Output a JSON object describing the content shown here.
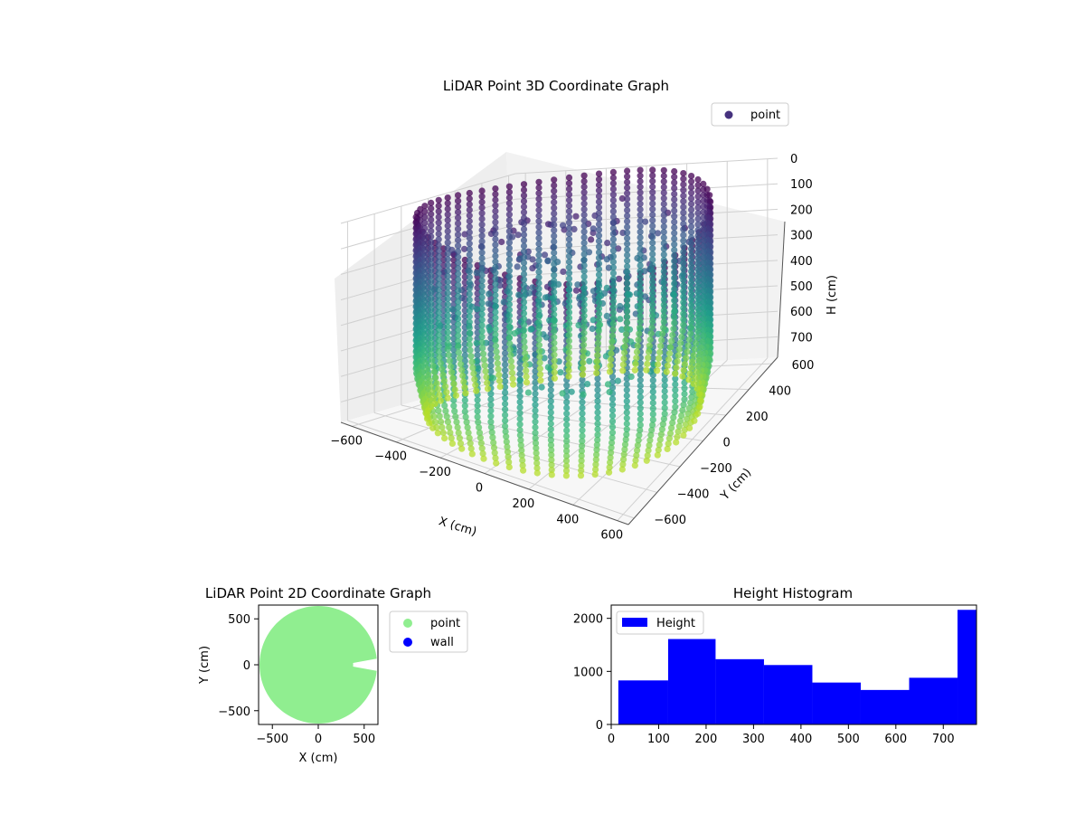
{
  "chart_data": [
    {
      "type": "scatter",
      "title": "LiDAR Point 3D Coordinate Graph",
      "xlabel": "X (cm)",
      "ylabel": "Y (cm)",
      "zlabel": "H (cm)",
      "xlim": [
        -650,
        650
      ],
      "ylim": [
        -650,
        650
      ],
      "zlim": [
        0,
        780
      ],
      "z_inverted": true,
      "xticks": [
        "−600",
        "−400",
        "−200",
        "0",
        "200",
        "400",
        "600"
      ],
      "yticks": [
        "−600",
        "−400",
        "−200",
        "0",
        "200",
        "400",
        "600"
      ],
      "zticks": [
        "0",
        "100",
        "200",
        "300",
        "400",
        "500",
        "600",
        "700"
      ],
      "colormap": "viridis",
      "legend": {
        "label": "point",
        "color": "#46327e",
        "position": "upper-right"
      },
      "grid": true,
      "shape": {
        "wall_radius_cm": 600,
        "height_max_cm": 770
      }
    },
    {
      "type": "scatter",
      "title": "LiDAR Point 2D Coordinate Graph",
      "xlabel": "X (cm)",
      "ylabel": "Y (cm)",
      "xlim": [
        -650,
        650
      ],
      "ylim": [
        -650,
        650
      ],
      "xticks": [
        "−500",
        "0",
        "500"
      ],
      "yticks": [
        "−500",
        "0",
        "500"
      ],
      "series": [
        {
          "name": "point",
          "color": "#90ee90"
        },
        {
          "name": "wall",
          "color": "#0000ff"
        }
      ],
      "legend_position": "outside-right"
    },
    {
      "type": "bar",
      "title": "Height Histogram",
      "xlim": [
        0,
        770
      ],
      "ylim": [
        0,
        2250
      ],
      "xticks": [
        "0",
        "100",
        "200",
        "300",
        "400",
        "500",
        "600",
        "700"
      ],
      "yticks": [
        "0",
        "1000",
        "2000"
      ],
      "bin_edges": [
        15,
        120,
        220,
        322,
        424,
        526,
        628,
        730,
        770
      ],
      "values": [
        830,
        1610,
        1230,
        1120,
        790,
        650,
        880,
        2160
      ],
      "color": "#0000ff",
      "legend": {
        "label": "Height",
        "position": "upper-left"
      }
    }
  ]
}
